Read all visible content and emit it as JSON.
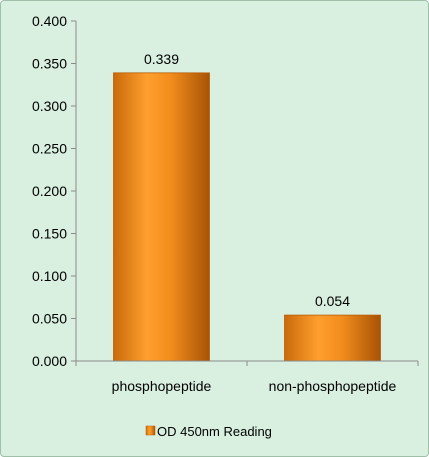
{
  "chart_data": {
    "type": "bar",
    "categories": [
      "phosphopeptide",
      "non-phosphopeptide"
    ],
    "series": [
      {
        "name": "OD 450nm Reading",
        "values": [
          0.339,
          0.054
        ]
      }
    ],
    "data_labels": [
      "0.339",
      "0.054"
    ],
    "yticks": [
      "0.000",
      "0.050",
      "0.100",
      "0.150",
      "0.200",
      "0.250",
      "0.300",
      "0.350",
      "0.400"
    ],
    "ylim": [
      0,
      0.4
    ],
    "grid": false,
    "legend_position": "bottom",
    "colors": {
      "background": "#d9f0e1",
      "bar_light": "#ffb347",
      "bar_mid": "#f28c1c",
      "bar_dark": "#b85c06",
      "axis": "#8a8a8a"
    }
  }
}
